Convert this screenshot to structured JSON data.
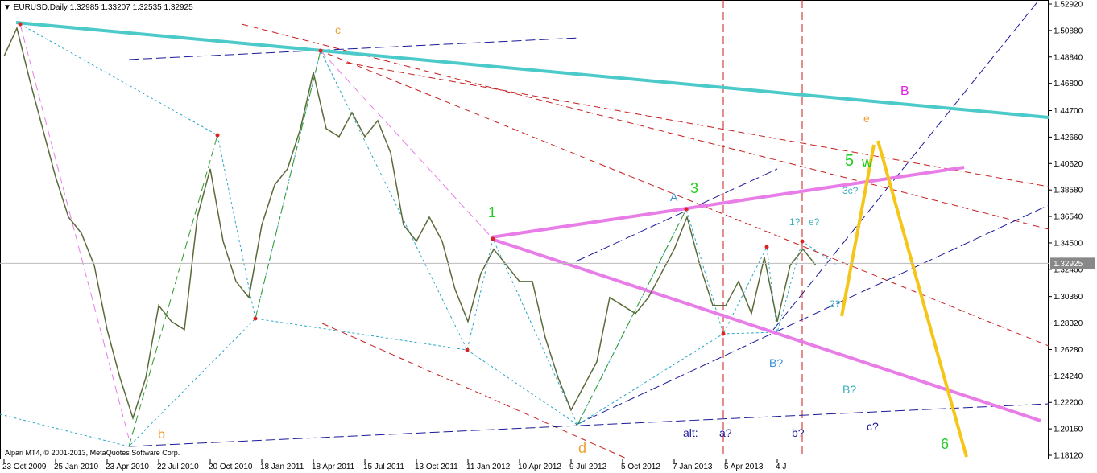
{
  "header": {
    "symbol": "EURUSD,Daily",
    "ohlc": [
      1.32985,
      1.33207,
      1.32535,
      1.32925
    ]
  },
  "footer": "Alpari MT4, © 2001-2013, MetaQuotes Software Corp.",
  "annotations": [
    "c",
    "b",
    "d",
    "1",
    "3",
    "A",
    "5",
    "w",
    "e",
    "B",
    "1?",
    "e?",
    "3c?",
    "2?",
    "B?",
    "B?",
    "alt:",
    "a?",
    "b?",
    "c?",
    "6"
  ],
  "chart_data": {
    "type": "line",
    "color": "#5a6b3a",
    "last_price": 1.32925,
    "categories": [
      "23 Oct 2009",
      null,
      null,
      null,
      "25 Jan 2010",
      null,
      null,
      null,
      "23 Apr 2010",
      null,
      null,
      null,
      "22 Jul 2010",
      null,
      null,
      null,
      "20 Oct 2010",
      null,
      null,
      null,
      "18 Jan 2011",
      null,
      null,
      null,
      "18 Apr 2011",
      null,
      null,
      null,
      "15 Jul 2011",
      null,
      null,
      null,
      "13 Oct 2011",
      null,
      null,
      null,
      "11 Jan 2012",
      null,
      null,
      null,
      "10 Apr 2012",
      null,
      null,
      null,
      "9 Jul 2012",
      null,
      null,
      null,
      "5 Oct 2012",
      null,
      null,
      null,
      "7 Jan 2013",
      null,
      null,
      null,
      "5 Apr 2013",
      null,
      null,
      null,
      "4 J",
      null,
      null,
      null
    ],
    "values": [
      1.4889,
      1.5106,
      1.4703,
      1.4331,
      1.3959,
      1.3649,
      1.3525,
      1.3277,
      1.2781,
      1.2409,
      1.2099,
      1.2409,
      1.2967,
      1.2843,
      1.2781,
      1.3649,
      1.4021,
      1.3463,
      1.3153,
      1.3029,
      1.3587,
      1.3897,
      1.4021,
      1.4331,
      1.4765,
      1.4331,
      1.4269,
      1.4455,
      1.4269,
      1.4393,
      1.4145,
      1.3587,
      1.3463,
      1.3649,
      1.3463,
      1.3091,
      1.2843,
      1.3215,
      1.3401,
      1.3277,
      1.3153,
      1.3153,
      1.2719,
      1.2409,
      1.2161,
      1.2347,
      1.2533,
      1.3029,
      1.2967,
      1.2905,
      1.3029,
      1.3215,
      1.3401,
      1.3649,
      1.3277,
      1.2967,
      1.2967,
      1.3153,
      1.2905,
      1.3339,
      1.2843,
      1.3277,
      1.3401,
      1.3277
    ],
    "ylim": [
      1.1781,
      1.5323
    ],
    "yticks": [
      {
        "value": 1.5292,
        "label": "1.52920"
      },
      {
        "value": 1.5088,
        "label": "1.50880"
      },
      {
        "value": 1.4884,
        "label": "1.48840"
      },
      {
        "value": 1.468,
        "label": "1.46800"
      },
      {
        "value": 1.447,
        "label": "1.44700"
      },
      {
        "value": 1.4266,
        "label": "1.42660"
      },
      {
        "value": 1.4062,
        "label": "1.40620"
      },
      {
        "value": 1.3858,
        "label": "1.38580"
      },
      {
        "value": 1.3654,
        "label": "1.36540"
      },
      {
        "value": 1.345,
        "label": "1.34500"
      },
      {
        "value": 1.3246,
        "label": "1.32460"
      },
      {
        "value": 1.3036,
        "label": "1.30360"
      },
      {
        "value": 1.2832,
        "label": "1.28320"
      },
      {
        "value": 1.2628,
        "label": "1.26280"
      },
      {
        "value": 1.2424,
        "label": "1.24240"
      },
      {
        "value": 1.222,
        "label": "1.22200"
      },
      {
        "value": 1.2016,
        "label": "1.20160"
      },
      {
        "value": 1.1812,
        "label": "1.18120"
      }
    ]
  }
}
